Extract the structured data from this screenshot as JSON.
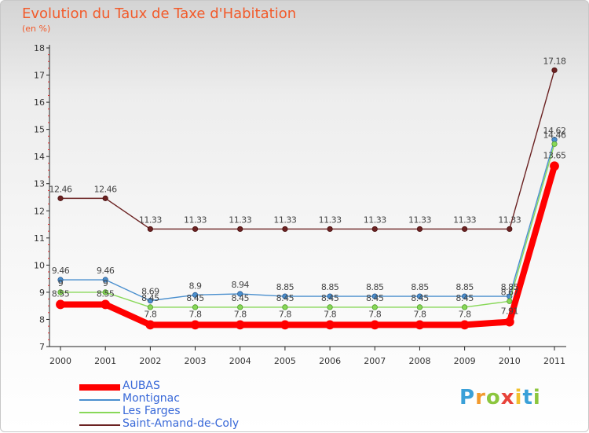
{
  "title": "Evolution du Taux de Taxe d'Habitation",
  "unit_label": "(en %)",
  "logo": {
    "text": "Proxiti"
  },
  "chart_data": {
    "type": "line",
    "title": "Evolution du Taux de Taxe d'Habitation",
    "ylabel": "(en %)",
    "xlabel": "",
    "ylim": [
      7,
      18
    ],
    "yticks": [
      "7",
      "8",
      "9",
      "10",
      "11",
      "12",
      "13",
      "14",
      "15",
      "16",
      "17",
      "18"
    ],
    "categories": [
      "2000",
      "2001",
      "2002",
      "2003",
      "2004",
      "2005",
      "2006",
      "2007",
      "2008",
      "2009",
      "2010",
      "2011"
    ],
    "series": [
      {
        "name": "Saint-Amand-de-Coly",
        "color": "#6b2222",
        "values": [
          12.46,
          12.46,
          11.33,
          11.33,
          11.33,
          11.33,
          11.33,
          11.33,
          11.33,
          11.33,
          11.33,
          17.18
        ],
        "labels": [
          "12.46",
          "12.46",
          "11.33",
          "11.33",
          "11.33",
          "11.33",
          "11.33",
          "11.33",
          "11.33",
          "11.33",
          "11.33",
          "17.18"
        ]
      },
      {
        "name": "Montignac",
        "color": "#4a8fce",
        "values": [
          9.46,
          9.46,
          8.69,
          8.9,
          8.94,
          8.85,
          8.85,
          8.85,
          8.85,
          8.85,
          8.85,
          14.62
        ],
        "labels": [
          "9.46",
          "9.46",
          "8.69",
          "8.9",
          "8.94",
          "8.85",
          "8.85",
          "8.85",
          "8.85",
          "8.85",
          "8.85",
          "14.62"
        ]
      },
      {
        "name": "Les Farges",
        "color": "#88d858",
        "values": [
          9.0,
          9.0,
          8.45,
          8.45,
          8.45,
          8.45,
          8.45,
          8.45,
          8.45,
          8.45,
          8.67,
          14.46
        ],
        "labels": [
          "9",
          "9",
          "8.45",
          "8.45",
          "8.45",
          "8.45",
          "8.45",
          "8.45",
          "8.45",
          "8.45",
          "8.67",
          "14.46"
        ]
      },
      {
        "name": "AUBAS",
        "color": "#ff0000",
        "values": [
          8.55,
          8.55,
          7.8,
          7.8,
          7.8,
          7.8,
          7.8,
          7.8,
          7.8,
          7.8,
          7.91,
          13.65
        ],
        "labels": [
          "8.55",
          "8.55",
          "7.8",
          "7.8",
          "7.8",
          "7.8",
          "7.8",
          "7.8",
          "7.8",
          "7.8",
          "7.91",
          "13.65"
        ]
      }
    ],
    "legend": [
      "AUBAS",
      "Montignac",
      "Les Farges",
      "Saint-Amand-de-Coly"
    ]
  }
}
